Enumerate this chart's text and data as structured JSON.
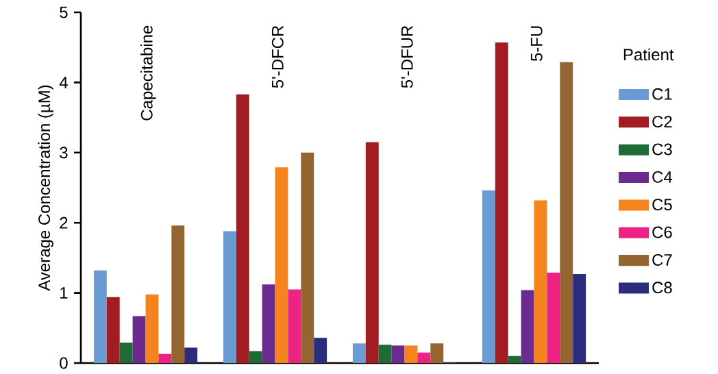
{
  "chart_data": {
    "type": "bar",
    "ylabel": "Average Concentration (µM)",
    "legend_title": "Patient",
    "categories": [
      "Capecitabine",
      "5'-DFCR",
      "5'-DFUR",
      "5-FU"
    ],
    "series": [
      {
        "name": "C1",
        "color": "#6a9bd3",
        "values": [
          1.32,
          1.88,
          0.28,
          2.46
        ]
      },
      {
        "name": "C2",
        "color": "#a31c22",
        "values": [
          0.94,
          3.83,
          3.15,
          4.57
        ]
      },
      {
        "name": "C3",
        "color": "#1e6b38",
        "values": [
          0.29,
          0.17,
          0.26,
          0.1
        ]
      },
      {
        "name": "C4",
        "color": "#6b2a8e",
        "values": [
          0.67,
          1.12,
          0.25,
          1.04
        ]
      },
      {
        "name": "C5",
        "color": "#f5841f",
        "values": [
          0.98,
          2.79,
          0.25,
          2.32
        ]
      },
      {
        "name": "C6",
        "color": "#ec2383",
        "values": [
          0.13,
          1.05,
          0.15,
          1.29
        ]
      },
      {
        "name": "C7",
        "color": "#946530",
        "values": [
          1.96,
          3.0,
          0.28,
          4.29
        ]
      },
      {
        "name": "C8",
        "color": "#2a2d7c",
        "values": [
          0.22,
          0.36,
          0.01,
          1.27
        ]
      }
    ],
    "ylim": [
      0,
      5
    ],
    "yticks": [
      0,
      1,
      2,
      3,
      4,
      5
    ],
    "legend": "right"
  }
}
